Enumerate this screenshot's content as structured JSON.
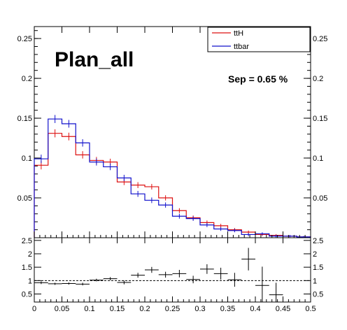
{
  "chart_data": [
    {
      "type": "histogram",
      "title": "Plan_all",
      "annotation": "Sep = 0.65 %",
      "xlim": [
        0,
        0.5
      ],
      "ylim": [
        0,
        0.265
      ],
      "bin_width": 0.025,
      "legend": {
        "placement": "top-right",
        "entries": [
          "ttH",
          "ttbar"
        ]
      },
      "colors": {
        "ttH": "#dd1111",
        "ttbar": "#1111cc"
      },
      "y_ticks": [
        "0.05",
        "0.1",
        "0.15",
        "0.2",
        "0.25"
      ],
      "series": [
        {
          "name": "ttH",
          "values": [
            0.091,
            0.131,
            0.127,
            0.104,
            0.097,
            0.095,
            0.07,
            0.066,
            0.064,
            0.05,
            0.034,
            0.025,
            0.019,
            0.015,
            0.01,
            0.007,
            0.004,
            0.003,
            0.002,
            0.001
          ]
        },
        {
          "name": "ttbar",
          "values": [
            0.099,
            0.149,
            0.143,
            0.119,
            0.095,
            0.089,
            0.075,
            0.055,
            0.047,
            0.041,
            0.027,
            0.024,
            0.016,
            0.011,
            0.009,
            0.004,
            0.005,
            0.002,
            0.002,
            0.001
          ]
        }
      ]
    },
    {
      "type": "ratio",
      "xlim": [
        0,
        0.5
      ],
      "ylim": [
        0.2,
        2.6
      ],
      "reference_line": 1,
      "x_ticks": [
        "0",
        "0.05",
        "0.1",
        "0.15",
        "0.2",
        "0.25",
        "0.3",
        "0.35",
        "0.4",
        "0.45",
        "0.5"
      ],
      "y_ticks": [
        "0.5",
        "1",
        "1.5",
        "2",
        "2.5"
      ],
      "bin_width": 0.025,
      "points": [
        {
          "x": 0.0125,
          "y": 0.92,
          "err": 0.05
        },
        {
          "x": 0.0375,
          "y": 0.88,
          "err": 0.04
        },
        {
          "x": 0.0625,
          "y": 0.89,
          "err": 0.04
        },
        {
          "x": 0.0875,
          "y": 0.87,
          "err": 0.05
        },
        {
          "x": 0.1125,
          "y": 1.02,
          "err": 0.05
        },
        {
          "x": 0.1375,
          "y": 1.07,
          "err": 0.06
        },
        {
          "x": 0.1625,
          "y": 0.93,
          "err": 0.07
        },
        {
          "x": 0.1875,
          "y": 1.2,
          "err": 0.09
        },
        {
          "x": 0.2125,
          "y": 1.4,
          "err": 0.11
        },
        {
          "x": 0.2375,
          "y": 1.22,
          "err": 0.11
        },
        {
          "x": 0.2625,
          "y": 1.26,
          "err": 0.14
        },
        {
          "x": 0.2875,
          "y": 1.04,
          "err": 0.14
        },
        {
          "x": 0.3125,
          "y": 1.43,
          "err": 0.18
        },
        {
          "x": 0.3375,
          "y": 1.26,
          "err": 0.22
        },
        {
          "x": 0.3625,
          "y": 1.03,
          "err": 0.26
        },
        {
          "x": 0.3875,
          "y": 1.8,
          "err": 0.42
        },
        {
          "x": 0.4125,
          "y": 0.82,
          "err": 0.7
        },
        {
          "x": 0.4375,
          "y": 0.47,
          "err": 0.45
        }
      ]
    }
  ]
}
